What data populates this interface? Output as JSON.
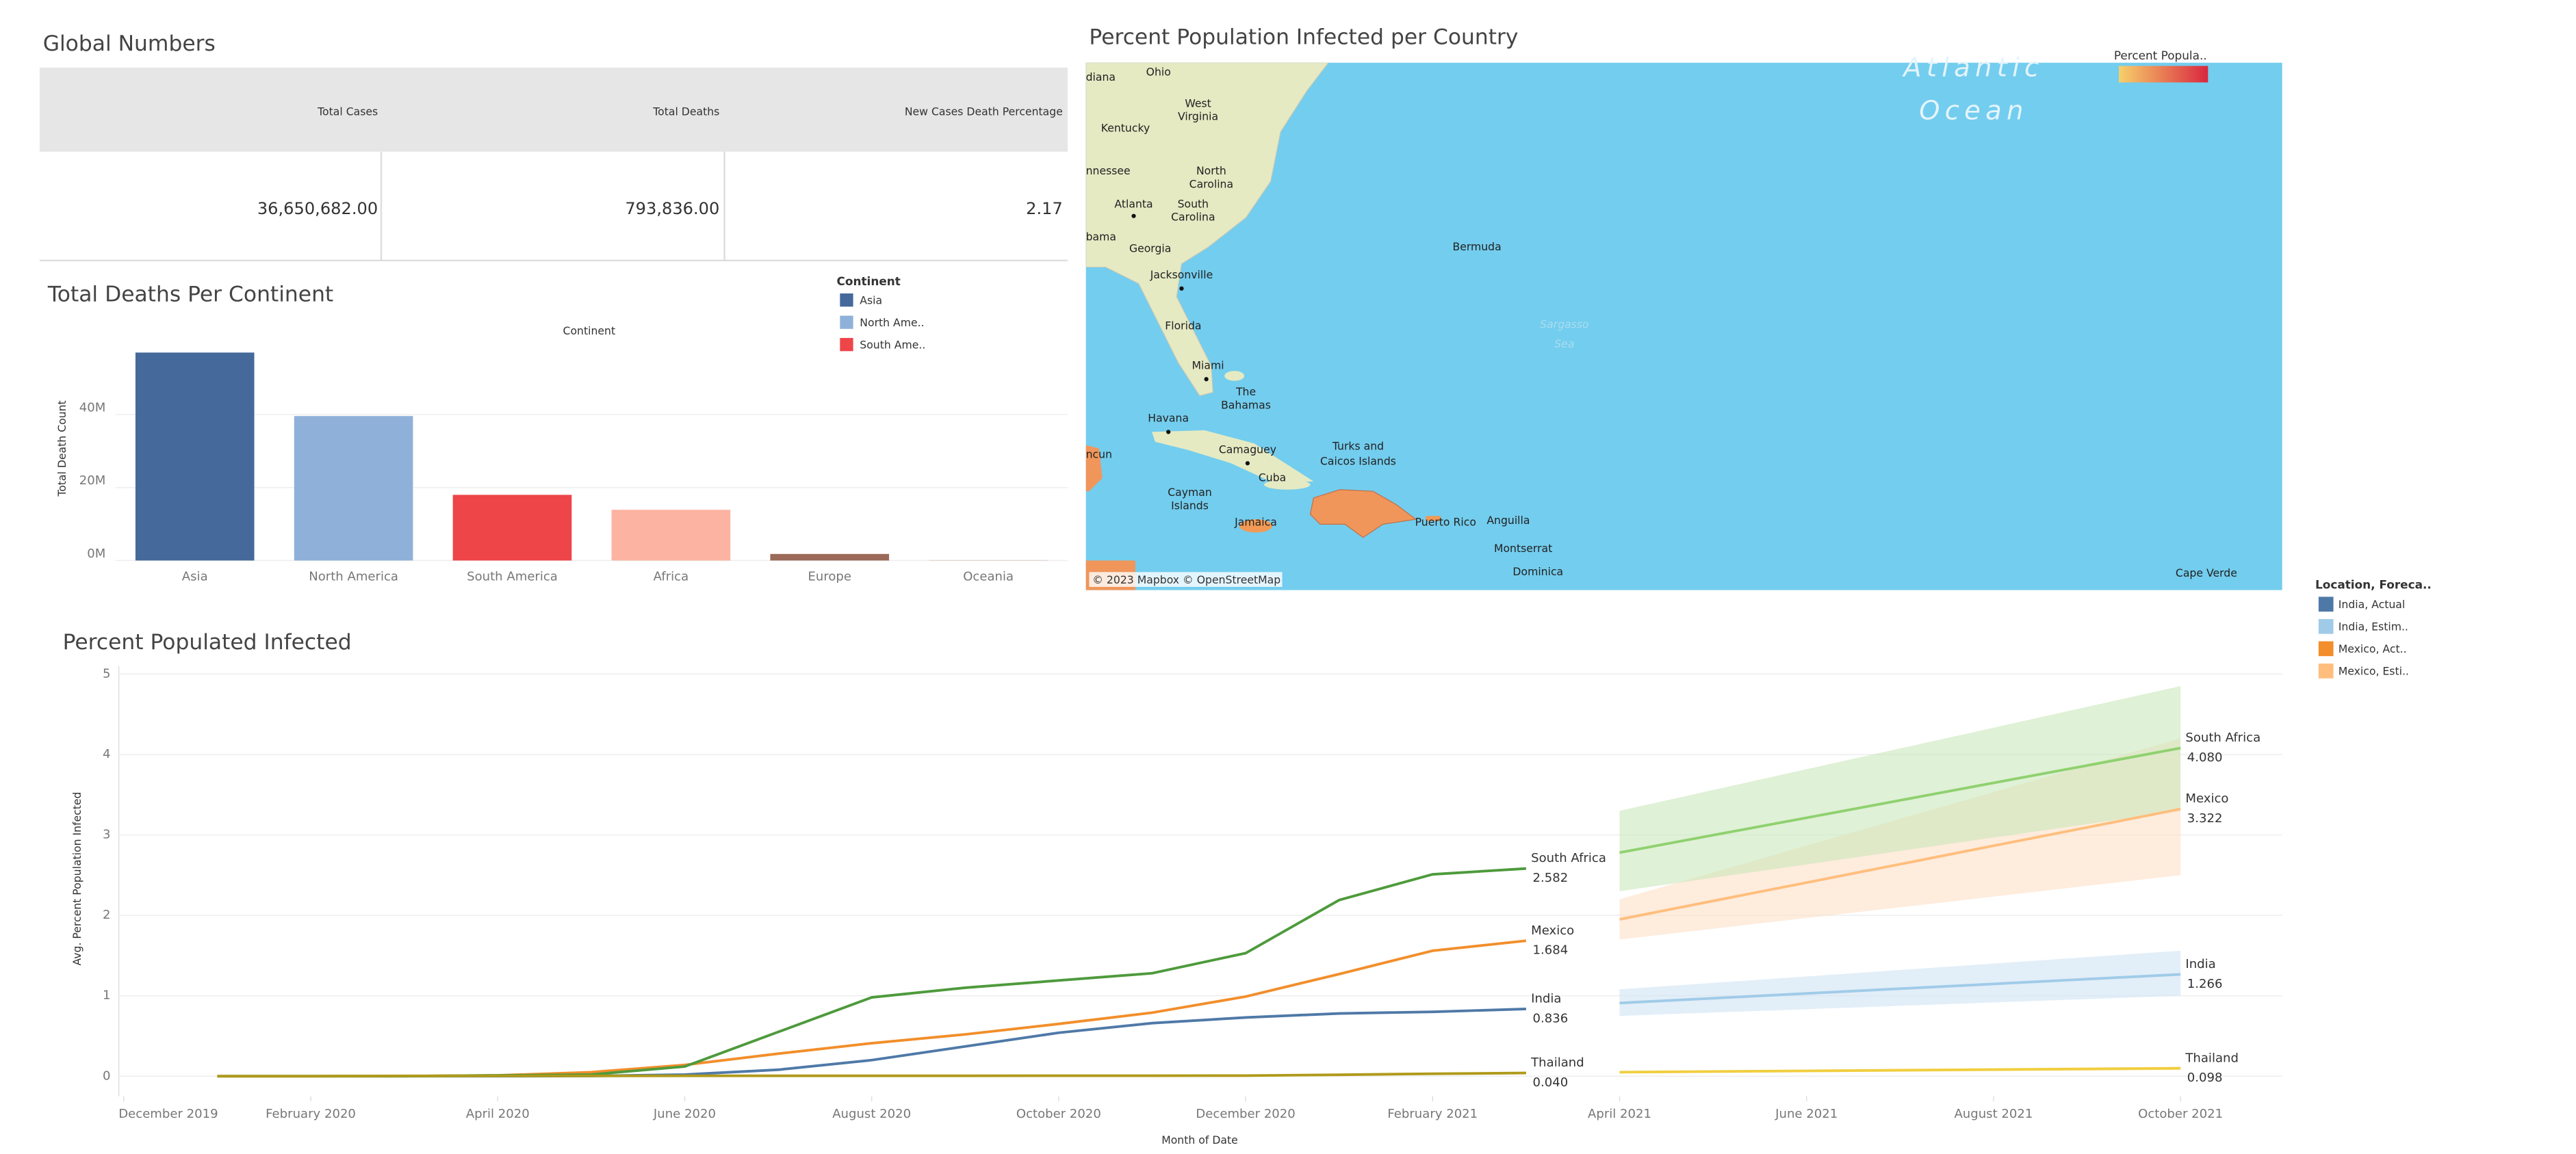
{
  "global_numbers": {
    "title": "Global Numbers",
    "table": {
      "columns": [
        "Total Cases",
        "Total Deaths",
        "New Cases Death Percentage"
      ],
      "rows": [
        [
          "36,650,682.00",
          "793,836.00",
          "2.17"
        ]
      ]
    }
  },
  "chart_data": [
    {
      "type": "bar",
      "title": "Total Deaths Per Continent",
      "x_header": "Continent",
      "y_label": "Total Death Count",
      "categories": [
        "Asia",
        "North America",
        "South America",
        "Africa",
        "Europe",
        "Oceania"
      ],
      "values": [
        57000000,
        39600000,
        18000000,
        13900000,
        1800000,
        100000
      ],
      "colors": [
        "#44699a",
        "#8fb1d9",
        "#ee4548",
        "#fdb3a1",
        "#9c6a59",
        "#d7b5a6"
      ],
      "ylim": [
        0,
        61000000
      ],
      "yticks": [
        {
          "value": 0,
          "label": "0M"
        },
        {
          "value": 20000000,
          "label": "20M"
        },
        {
          "value": 40000000,
          "label": "40M"
        }
      ],
      "grid": true,
      "legend": {
        "title": "Continent",
        "labels": [
          "Asia",
          "North Ame..",
          "South Ame.."
        ]
      }
    },
    {
      "type": "map",
      "title": "Percent Population Infected per Country",
      "legend": {
        "title": "Percent Popula..",
        "colors": [
          "#f7d06a",
          "#d9273f"
        ]
      },
      "places": [
        "diana",
        "Ohio",
        "West",
        "Virginia",
        "Kentucky",
        "nnessee",
        "North",
        "Carolina",
        "Atlanta",
        "South",
        "Carolina",
        "bama",
        "Georgia",
        "Jacksonville",
        "Florida",
        "Miami",
        "The",
        "Bahamas",
        "Havana",
        "ncun",
        "Camaguey",
        "Cuba",
        "Cayman",
        "Islands",
        "Jamaica",
        "Turks and",
        "Caicos Islands",
        "Bermuda",
        "Sargasso",
        "Sea",
        "Atlantic",
        "Ocean",
        "Puerto Rico",
        "Anguilla",
        "Montserrat",
        "Dominica",
        "Cape Verde"
      ],
      "attribution": "© 2023 Mapbox © OpenStreetMap"
    },
    {
      "type": "line",
      "title": "Percent Populated Infected",
      "x_label": "Month of Date",
      "y_label": "Avg. Percent Population Infected",
      "xlim": [
        "2019-12",
        "2021-11"
      ],
      "xticks": [
        {
          "value": "2019-12",
          "label": "December 2019"
        },
        {
          "value": "2020-02",
          "label": "February 2020"
        },
        {
          "value": "2020-04",
          "label": "April 2020"
        },
        {
          "value": "2020-06",
          "label": "June 2020"
        },
        {
          "value": "2020-08",
          "label": "August 2020"
        },
        {
          "value": "2020-10",
          "label": "October 2020"
        },
        {
          "value": "2020-12",
          "label": "December 2020"
        },
        {
          "value": "2021-02",
          "label": "February 2021"
        },
        {
          "value": "2021-04",
          "label": "April 2021"
        },
        {
          "value": "2021-06",
          "label": "June 2021"
        },
        {
          "value": "2021-08",
          "label": "August 2021"
        },
        {
          "value": "2021-10",
          "label": "October 2021"
        }
      ],
      "ylim": [
        -0.25,
        5.1
      ],
      "yticks": [
        0,
        1,
        2,
        3,
        4,
        5
      ],
      "grid": true,
      "legend": {
        "title": "Location, Foreca..",
        "entries": [
          {
            "name": "India, Actual",
            "color": "#4e79a7"
          },
          {
            "name": "India, Estim..",
            "color": "#a0cbe8"
          },
          {
            "name": "Mexico, Act..",
            "color": "#f28e2b"
          },
          {
            "name": "Mexico, Esti..",
            "color": "#ffbe7d"
          }
        ]
      },
      "series": [
        {
          "label": "India",
          "color": "#4e79a7",
          "x": [
            "2020-01",
            "2020-02",
            "2020-03",
            "2020-04",
            "2020-05",
            "2020-06",
            "2020-07",
            "2020-08",
            "2020-09",
            "2020-10",
            "2020-11",
            "2020-12",
            "2021-01",
            "2021-02",
            "2021-03"
          ],
          "values": [
            0,
            0,
            0,
            0,
            0.003,
            0.02,
            0.08,
            0.2,
            0.37,
            0.54,
            0.66,
            0.73,
            0.78,
            0.8,
            0.836
          ],
          "value_labels": [
            null,
            null,
            null,
            null,
            null,
            null,
            null,
            null,
            null,
            null,
            null,
            null,
            null,
            null,
            "0.836"
          ]
        },
        {
          "label": "Mexico",
          "color": "#f28e2b",
          "x": [
            "2020-01",
            "2020-02",
            "2020-03",
            "2020-04",
            "2020-05",
            "2020-06",
            "2020-07",
            "2020-08",
            "2020-09",
            "2020-10",
            "2020-11",
            "2020-12",
            "2021-01",
            "2021-02",
            "2021-03"
          ],
          "values": [
            0,
            0,
            0.001,
            0.01,
            0.05,
            0.14,
            0.28,
            0.41,
            0.52,
            0.65,
            0.79,
            0.99,
            1.27,
            1.56,
            1.684
          ],
          "value_labels": [
            null,
            null,
            null,
            null,
            null,
            null,
            null,
            null,
            null,
            null,
            null,
            null,
            null,
            null,
            "1.684"
          ]
        },
        {
          "label": "South Africa",
          "color": "#4e9a3c",
          "x": [
            "2020-01",
            "2020-02",
            "2020-03",
            "2020-04",
            "2020-05",
            "2020-06",
            "2020-07",
            "2020-08",
            "2020-09",
            "2020-10",
            "2020-11",
            "2020-12",
            "2021-01",
            "2021-02",
            "2021-03"
          ],
          "values": [
            0,
            0,
            0.001,
            0.01,
            0.02,
            0.12,
            0.55,
            0.98,
            1.1,
            1.19,
            1.28,
            1.53,
            2.19,
            2.51,
            2.582
          ],
          "value_labels": [
            null,
            null,
            null,
            null,
            null,
            null,
            null,
            null,
            null,
            null,
            null,
            null,
            null,
            null,
            "2.582"
          ]
        },
        {
          "label": "Thailand",
          "color": "#b09a1a",
          "x": [
            "2020-01",
            "2020-02",
            "2020-03",
            "2020-04",
            "2020-05",
            "2020-06",
            "2020-07",
            "2020-08",
            "2020-09",
            "2020-10",
            "2020-11",
            "2020-12",
            "2021-01",
            "2021-02",
            "2021-03"
          ],
          "values": [
            0,
            0,
            0.004,
            0.004,
            0.004,
            0.005,
            0.005,
            0.005,
            0.005,
            0.006,
            0.006,
            0.007,
            0.018,
            0.03,
            0.04
          ],
          "value_labels": [
            null,
            null,
            null,
            null,
            null,
            null,
            null,
            null,
            null,
            null,
            null,
            null,
            null,
            null,
            "0.040"
          ]
        },
        {
          "label": "India",
          "color": "#a0cbe8",
          "band_color": "#cfe3f3",
          "x": [
            "2021-04",
            "2021-05",
            "2021-06",
            "2021-07",
            "2021-08",
            "2021-09",
            "2021-10"
          ],
          "values": [
            0.91,
            0.969,
            1.029,
            1.088,
            1.147,
            1.207,
            1.266
          ],
          "lower": [
            0.75,
            0.792,
            0.833,
            0.875,
            0.917,
            0.958,
            1.0
          ],
          "upper": [
            1.08,
            1.16,
            1.24,
            1.32,
            1.4,
            1.48,
            1.56
          ],
          "value_labels": [
            null,
            null,
            null,
            null,
            null,
            null,
            "1.266"
          ]
        },
        {
          "label": "Mexico",
          "color": "#ffbe7d",
          "band_color": "#fde0c6",
          "x": [
            "2021-04",
            "2021-05",
            "2021-06",
            "2021-07",
            "2021-08",
            "2021-09",
            "2021-10"
          ],
          "values": [
            1.95,
            2.179,
            2.407,
            2.636,
            2.865,
            3.093,
            3.322
          ],
          "lower": [
            1.7,
            1.833,
            1.967,
            2.1,
            2.233,
            2.367,
            2.5
          ],
          "upper": [
            2.2,
            2.533,
            2.867,
            3.2,
            3.533,
            3.867,
            4.2
          ],
          "value_labels": [
            null,
            null,
            null,
            null,
            null,
            null,
            "3.322"
          ]
        },
        {
          "label": "South Africa",
          "color": "#8fd16f",
          "band_color": "#c9e8bb",
          "x": [
            "2021-04",
            "2021-05",
            "2021-06",
            "2021-07",
            "2021-08",
            "2021-09",
            "2021-10"
          ],
          "values": [
            2.78,
            2.997,
            3.213,
            3.43,
            3.647,
            3.863,
            4.08
          ],
          "lower": [
            2.3,
            2.467,
            2.633,
            2.8,
            2.967,
            3.133,
            3.3
          ],
          "upper": [
            3.3,
            3.558,
            3.817,
            4.075,
            4.333,
            4.592,
            4.85
          ],
          "value_labels": [
            null,
            null,
            null,
            null,
            null,
            null,
            "4.080"
          ]
        },
        {
          "label": "Thailand",
          "color": "#f1ce3f",
          "band_color": "#fbefc0",
          "x": [
            "2021-04",
            "2021-05",
            "2021-06",
            "2021-07",
            "2021-08",
            "2021-09",
            "2021-10"
          ],
          "values": [
            0.05,
            0.058,
            0.066,
            0.074,
            0.082,
            0.09,
            0.098
          ],
          "lower": [
            0.035,
            0.042,
            0.049,
            0.056,
            0.063,
            0.07,
            0.077
          ],
          "upper": [
            0.065,
            0.074,
            0.083,
            0.092,
            0.101,
            0.11,
            0.119
          ],
          "value_labels": [
            null,
            null,
            null,
            null,
            null,
            null,
            "0.098"
          ]
        }
      ]
    }
  ]
}
